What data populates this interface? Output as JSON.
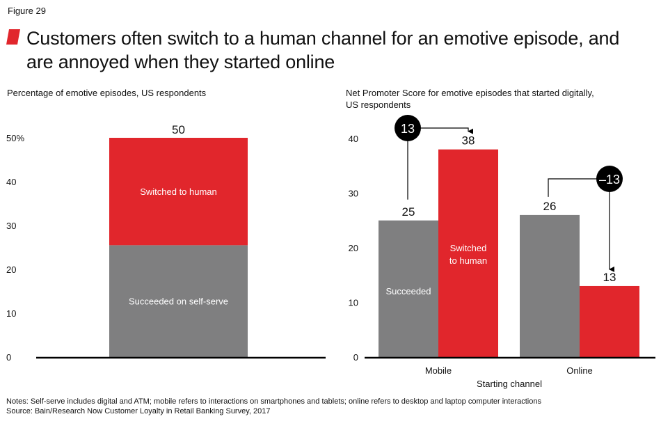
{
  "figure_label": "Figure 29",
  "title_line1": "Customers often switch to a human channel for an emotive episode, and",
  "title_line2": "are annoyed when they started online",
  "colors": {
    "red": "#e1262c",
    "gray": "#7f7f80",
    "black": "#000000",
    "white": "#ffffff"
  },
  "chart_data": [
    {
      "type": "bar",
      "subtitle": "Percentage of emotive episodes, US respondents",
      "stacked": true,
      "categories": [
        ""
      ],
      "series": [
        {
          "name": "Succeeded on self-serve",
          "values": [
            25.5
          ],
          "color": "#7f7f80"
        },
        {
          "name": "Switched to human",
          "values": [
            24.5
          ],
          "color": "#e1262c"
        }
      ],
      "total_label": "50",
      "ylim": [
        0,
        50
      ],
      "yticks": [
        "0",
        "10",
        "20",
        "30",
        "40",
        "50%"
      ],
      "ytick_values": [
        0,
        10,
        20,
        30,
        40,
        50
      ]
    },
    {
      "type": "bar",
      "subtitle_line1": "Net Promoter Score for emotive episodes that started digitally,",
      "subtitle_line2": "US respondents",
      "xlabel": "Starting channel",
      "categories": [
        "Mobile",
        "Online"
      ],
      "series": [
        {
          "name": "Succeeded",
          "values": [
            25,
            26
          ],
          "labels": [
            "25",
            "26"
          ],
          "color": "#7f7f80"
        },
        {
          "name": "Switched to human",
          "name_lines": [
            "Switched",
            "to human"
          ],
          "values": [
            38,
            13
          ],
          "labels": [
            "38",
            "13"
          ],
          "color": "#e1262c"
        }
      ],
      "ylim": [
        0,
        40
      ],
      "yticks": [
        "0",
        "10",
        "20",
        "30",
        "40"
      ],
      "ytick_values": [
        0,
        10,
        20,
        30,
        40
      ],
      "annotations": [
        {
          "category": "Mobile",
          "text": "13"
        },
        {
          "category": "Online",
          "text": "–13"
        }
      ]
    }
  ],
  "notes_line1": "Notes: Self-serve includes digital and ATM; mobile refers to interactions on smartphones and tablets; online refers to desktop and laptop computer interactions",
  "notes_line2": "Source: Bain/Research Now Customer Loyalty in Retail Banking Survey, 2017"
}
